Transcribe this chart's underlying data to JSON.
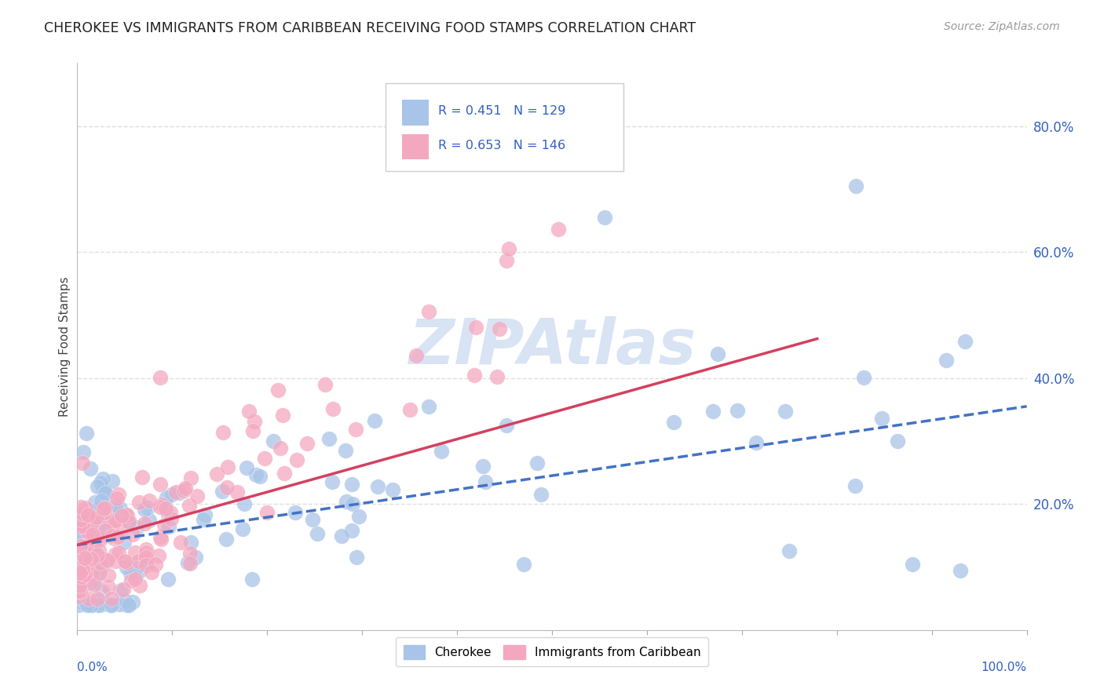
{
  "title": "CHEROKEE VS IMMIGRANTS FROM CARIBBEAN RECEIVING FOOD STAMPS CORRELATION CHART",
  "source": "Source: ZipAtlas.com",
  "ylabel": "Receiving Food Stamps",
  "cherokee_color": "#a8c4e8",
  "carib_color": "#f4a8c0",
  "cherokee_line_color": "#4472c4",
  "carib_line_color": "#d44060",
  "watermark_color": "#c8d8f0",
  "grid_color": "#d8d8d8",
  "legend_color": "#3060c0",
  "r_cherokee": "R = 0.451",
  "n_cherokee": "N = 129",
  "r_carib": "R = 0.653",
  "n_carib": "N = 146",
  "ytick_vals": [
    0.2,
    0.4,
    0.6,
    0.8
  ],
  "ytick_labels": [
    "20.0%",
    "40.0%",
    "60.0%",
    "80.0%"
  ],
  "xlim": [
    0.0,
    1.0
  ],
  "ylim": [
    0.0,
    0.9
  ],
  "cherokee_seed": 7,
  "carib_seed": 13
}
